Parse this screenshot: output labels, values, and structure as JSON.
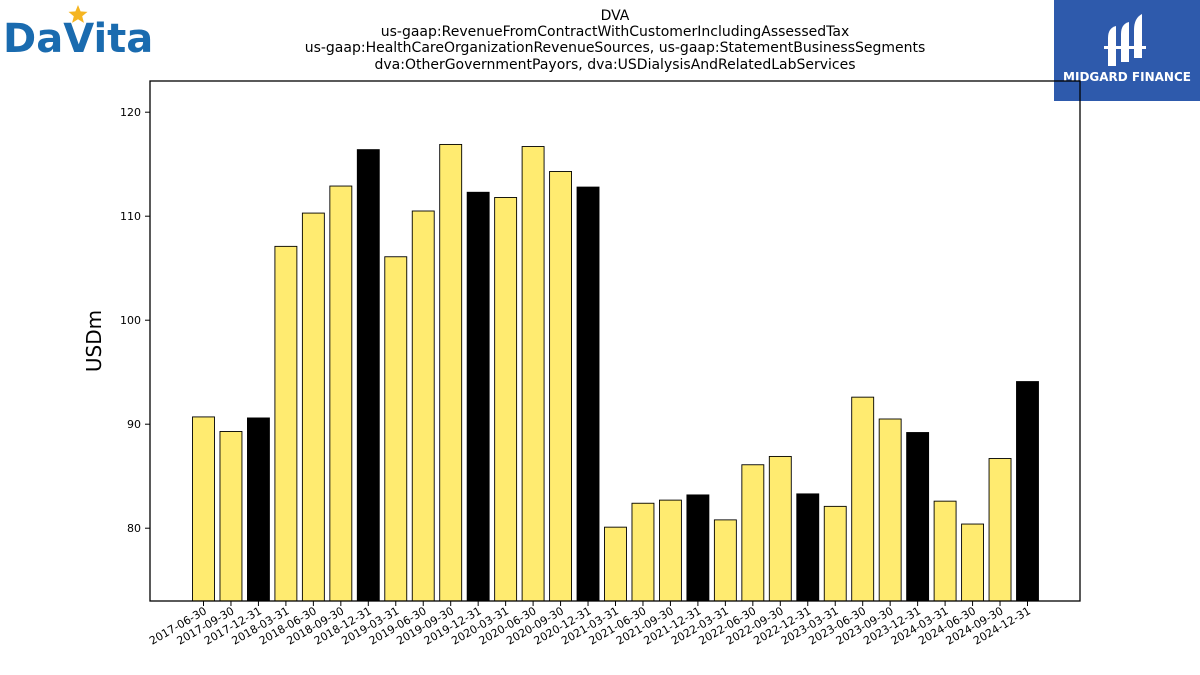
{
  "brand": {
    "company_logo_text": "DaVita",
    "publisher_logo_text": "MIDGARD FINANCE"
  },
  "colors": {
    "bar_regular": "#FFEB70",
    "bar_year_end": "#000000",
    "davita_blue": "#1A6BAF",
    "davita_star": "#F5B521",
    "midgard_bg": "#2E5AAC"
  },
  "chart_data": {
    "type": "bar",
    "title": "DVA",
    "subtitle_lines": [
      "us-gaap:RevenueFromContractWithCustomerIncludingAssessedTax",
      "us-gaap:HealthCareOrganizationRevenueSources, us-gaap:StatementBusinessSegments",
      "dva:OtherGovernmentPayors, dva:USDialysisAndRelatedLabServices"
    ],
    "xlabel": "",
    "ylabel": "USDm",
    "ylim": [
      73,
      123
    ],
    "yticks": [
      80,
      90,
      100,
      110,
      120
    ],
    "grid": false,
    "highlight_rule": "Q4 (year-end) bars in black, other quarters in yellow",
    "categories": [
      "2017-06-30",
      "2017-09-30",
      "2017-12-31",
      "2018-03-31",
      "2018-06-30",
      "2018-09-30",
      "2018-12-31",
      "2019-03-31",
      "2019-06-30",
      "2019-09-30",
      "2019-12-31",
      "2020-03-31",
      "2020-06-30",
      "2020-09-30",
      "2020-12-31",
      "2021-03-31",
      "2021-06-30",
      "2021-09-30",
      "2021-12-31",
      "2022-03-31",
      "2022-06-30",
      "2022-09-30",
      "2022-12-31",
      "2023-03-31",
      "2023-06-30",
      "2023-09-30",
      "2023-12-31",
      "2024-03-31",
      "2024-06-30",
      "2024-09-30",
      "2024-12-31"
    ],
    "values": [
      90.7,
      89.3,
      90.6,
      107.1,
      110.3,
      112.9,
      116.4,
      106.1,
      110.5,
      116.9,
      112.3,
      111.8,
      116.7,
      114.3,
      112.8,
      80.1,
      82.4,
      82.7,
      83.2,
      80.8,
      86.1,
      86.9,
      83.3,
      82.1,
      92.6,
      90.5,
      89.2,
      82.6,
      80.4,
      86.7,
      94.1
    ]
  }
}
